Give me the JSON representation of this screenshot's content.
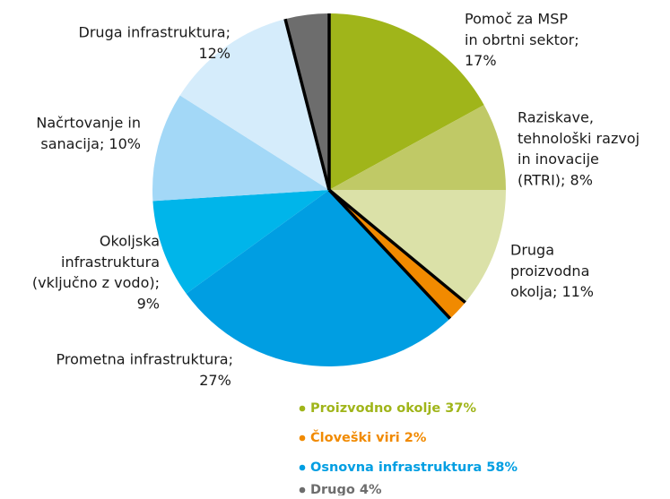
{
  "chart_data": {
    "type": "pie",
    "labels": [
      [
        "Pomoč za MSP",
        "in obrtni sektor;",
        "17%"
      ],
      [
        "Raziskave,",
        "tehnološki razvoj",
        "in inovacije",
        "(RTRI); 8%"
      ],
      [
        "Druga",
        "proizvodna",
        "okolja; 11%"
      ],
      null,
      [
        "Prometna infrastruktura;",
        "27%"
      ],
      [
        "Okoljska",
        "infrastruktura",
        "(vključno z vodo);",
        "9%"
      ],
      [
        "Načrtovanje in",
        "sanacija; 10%"
      ],
      [
        "Druga infrastruktura;",
        "12%"
      ],
      null
    ],
    "values": [
      17,
      8,
      11,
      2,
      27,
      9,
      10,
      12,
      4
    ],
    "colors": [
      "#a0b51a",
      "#c0c966",
      "#dbe1a8",
      "#f18a00",
      "#009ee2",
      "#00b5ea",
      "#a3d8f7",
      "#d5ecfb",
      "#6d6d6d"
    ],
    "legend": [
      {
        "name": "Proizvodno okolje 37%",
        "color": "#a0b51a"
      },
      {
        "name": "Človeški viri 2%",
        "color": "#f18a00"
      },
      {
        "name": "Osnovna infrastruktura 58%",
        "color": "#009ee2"
      },
      {
        "name": "Drugo 4%",
        "color": "#6d6d6d"
      }
    ]
  }
}
